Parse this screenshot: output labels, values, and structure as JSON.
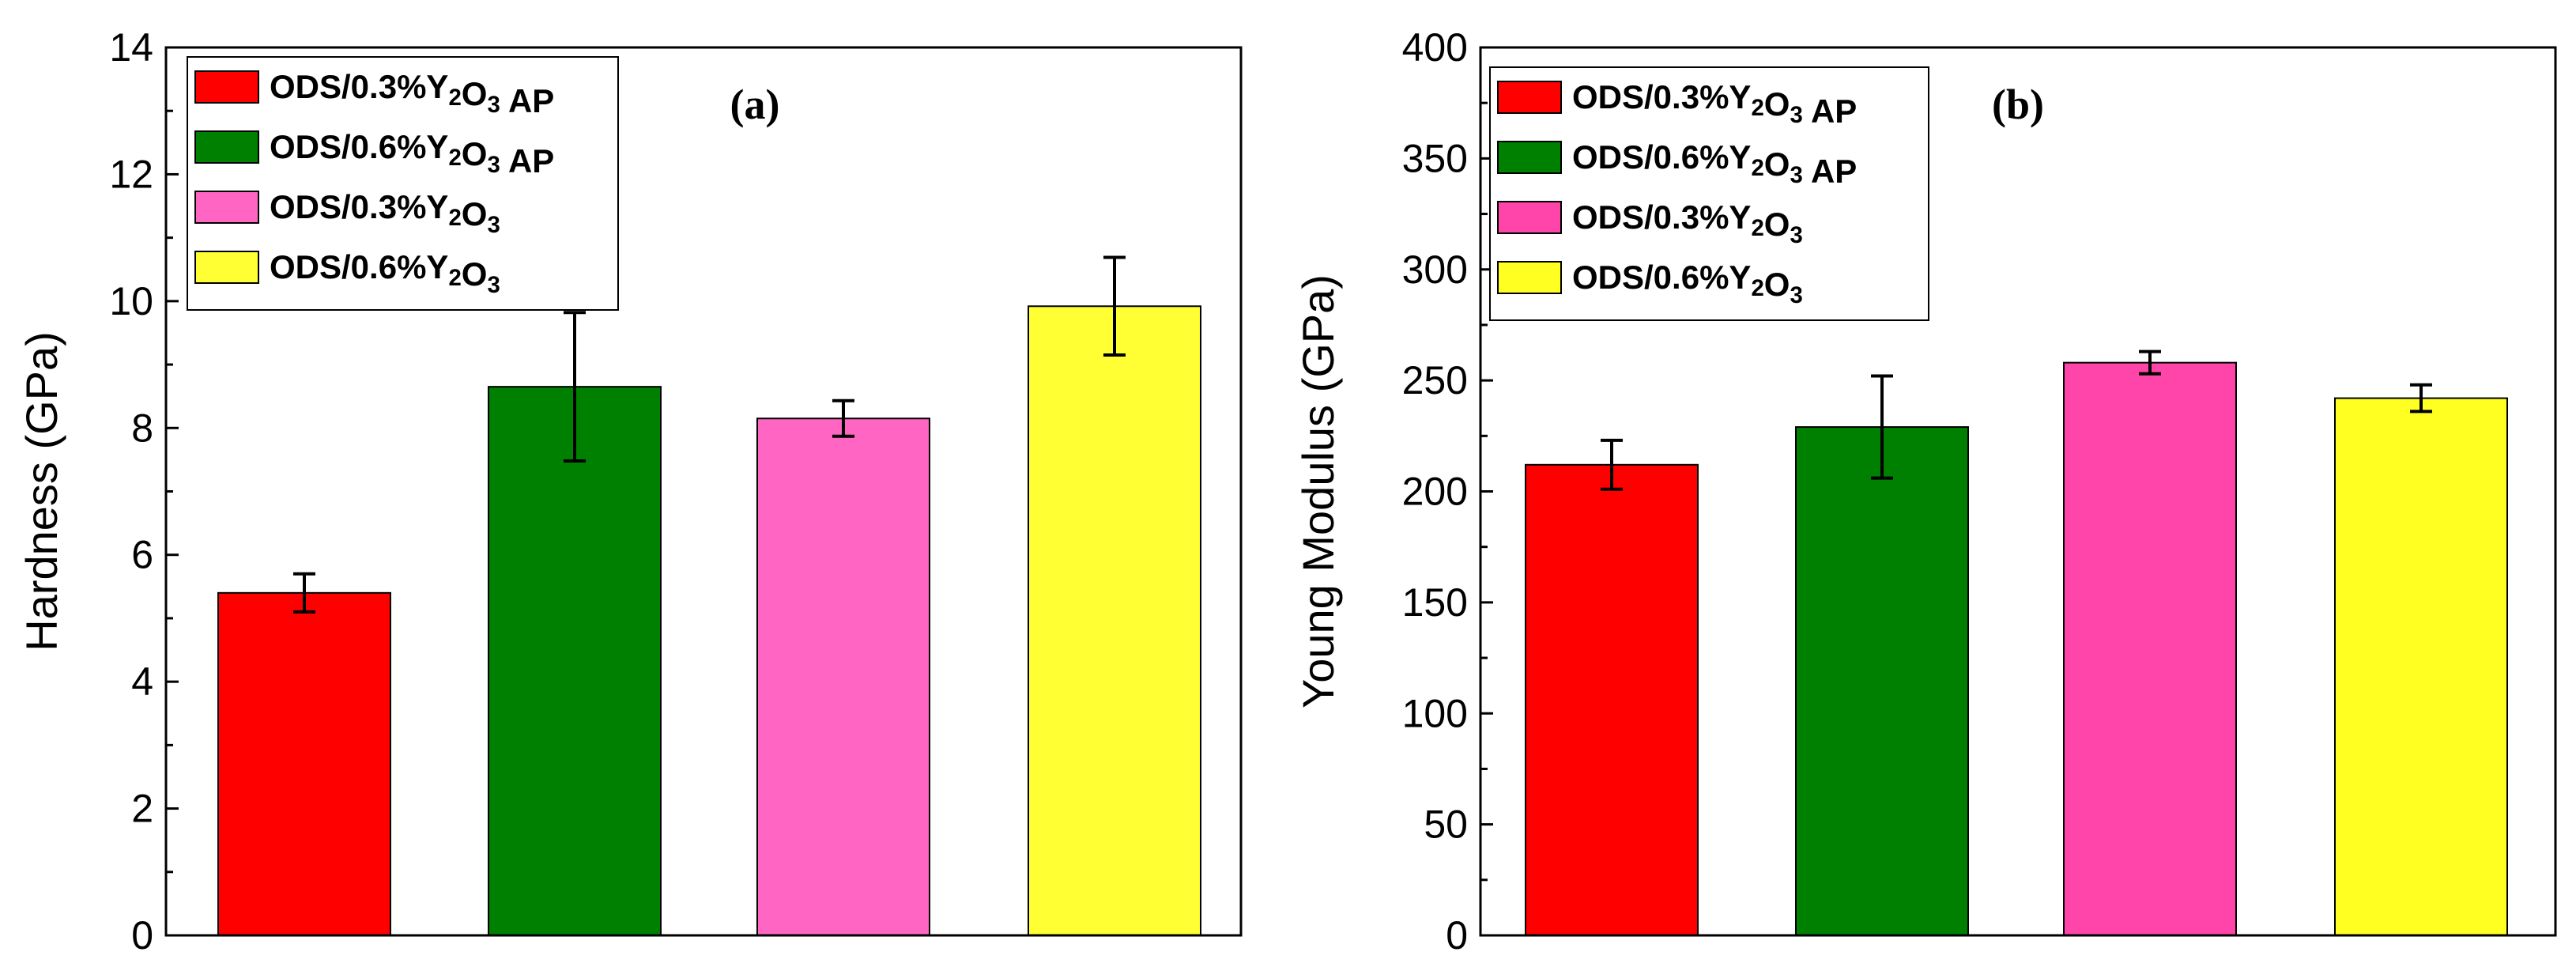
{
  "chart_data": [
    {
      "type": "bar",
      "panel_label": "(a)",
      "ylabel": "Hardness (GPa)",
      "ylim": [
        0,
        14
      ],
      "yticks": [
        0,
        2,
        4,
        6,
        8,
        10,
        12,
        14
      ],
      "grid": false,
      "legend_position": "top-left",
      "series": [
        {
          "name": "ODS/0.3%Y2O3 AP",
          "value": 5.4,
          "error": 0.3,
          "color": "#ff0000"
        },
        {
          "name": "ODS/0.6%Y2O3 AP",
          "value": 8.65,
          "error": 1.17,
          "color": "#008000"
        },
        {
          "name": "ODS/0.3%Y2O3",
          "value": 8.15,
          "error": 0.28,
          "color": "#ff66c4"
        },
        {
          "name": "ODS/0.6%Y2O3",
          "value": 9.92,
          "error": 0.77,
          "color": "#ffff33"
        }
      ]
    },
    {
      "type": "bar",
      "panel_label": "(b)",
      "ylabel": "Young Modulus (GPa)",
      "ylim": [
        0,
        400
      ],
      "yticks": [
        0,
        50,
        100,
        150,
        200,
        250,
        300,
        350,
        400
      ],
      "grid": false,
      "legend_position": "top-left",
      "series": [
        {
          "name": "ODS/0.3%Y2O3 AP",
          "value": 212,
          "error": 11,
          "color": "#ff0000"
        },
        {
          "name": "ODS/0.6%Y2O3 AP",
          "value": 229,
          "error": 23,
          "color": "#008000"
        },
        {
          "name": "ODS/0.3%Y2O3",
          "value": 258,
          "error": 5,
          "color": "#ff44aa"
        },
        {
          "name": "ODS/0.6%Y2O3",
          "value": 242,
          "error": 6,
          "color": "#ffff22"
        }
      ]
    }
  ]
}
